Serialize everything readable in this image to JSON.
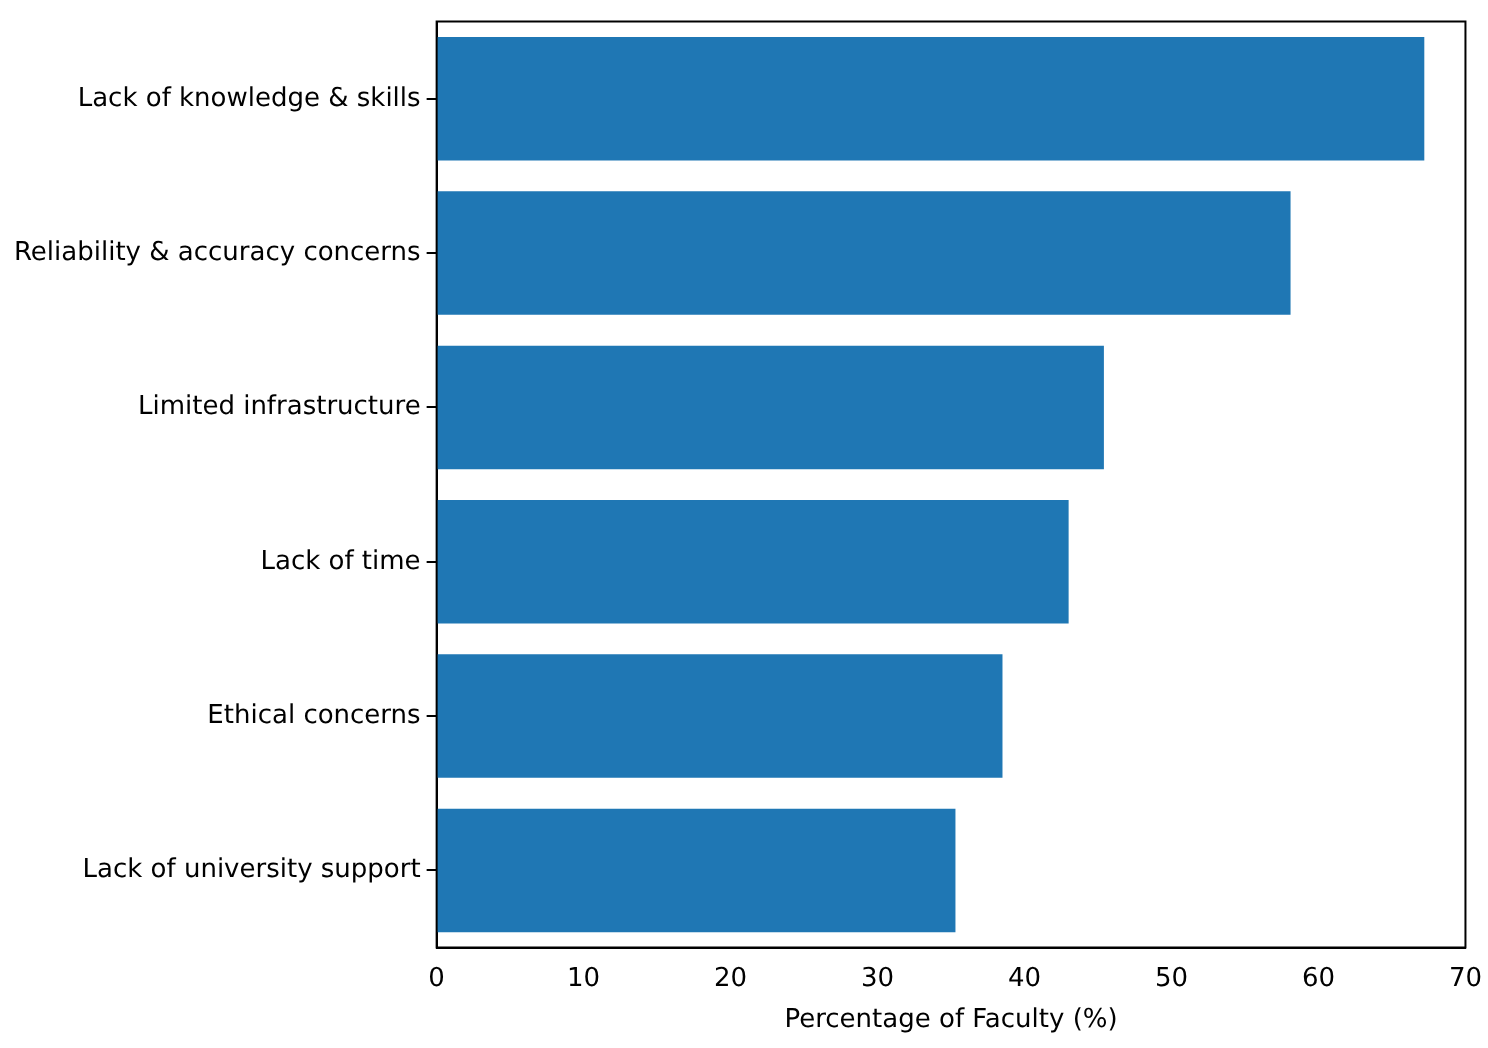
{
  "chart_data": {
    "type": "bar",
    "orientation": "horizontal",
    "xlabel": "Percentage of Faculty (%)",
    "categories": [
      "Lack of knowledge & skills",
      "Reliability & accuracy concerns",
      "Limited infrastructure",
      "Lack of time",
      "Ethical concerns",
      "Lack of university support"
    ],
    "values": [
      67.2,
      58.1,
      45.4,
      43.0,
      38.5,
      35.3
    ],
    "color": "#1f77b4",
    "xlim": [
      0,
      70
    ],
    "xticks": [
      0,
      10,
      20,
      30,
      40,
      50,
      60,
      70
    ],
    "grid": false,
    "legend": false
  }
}
